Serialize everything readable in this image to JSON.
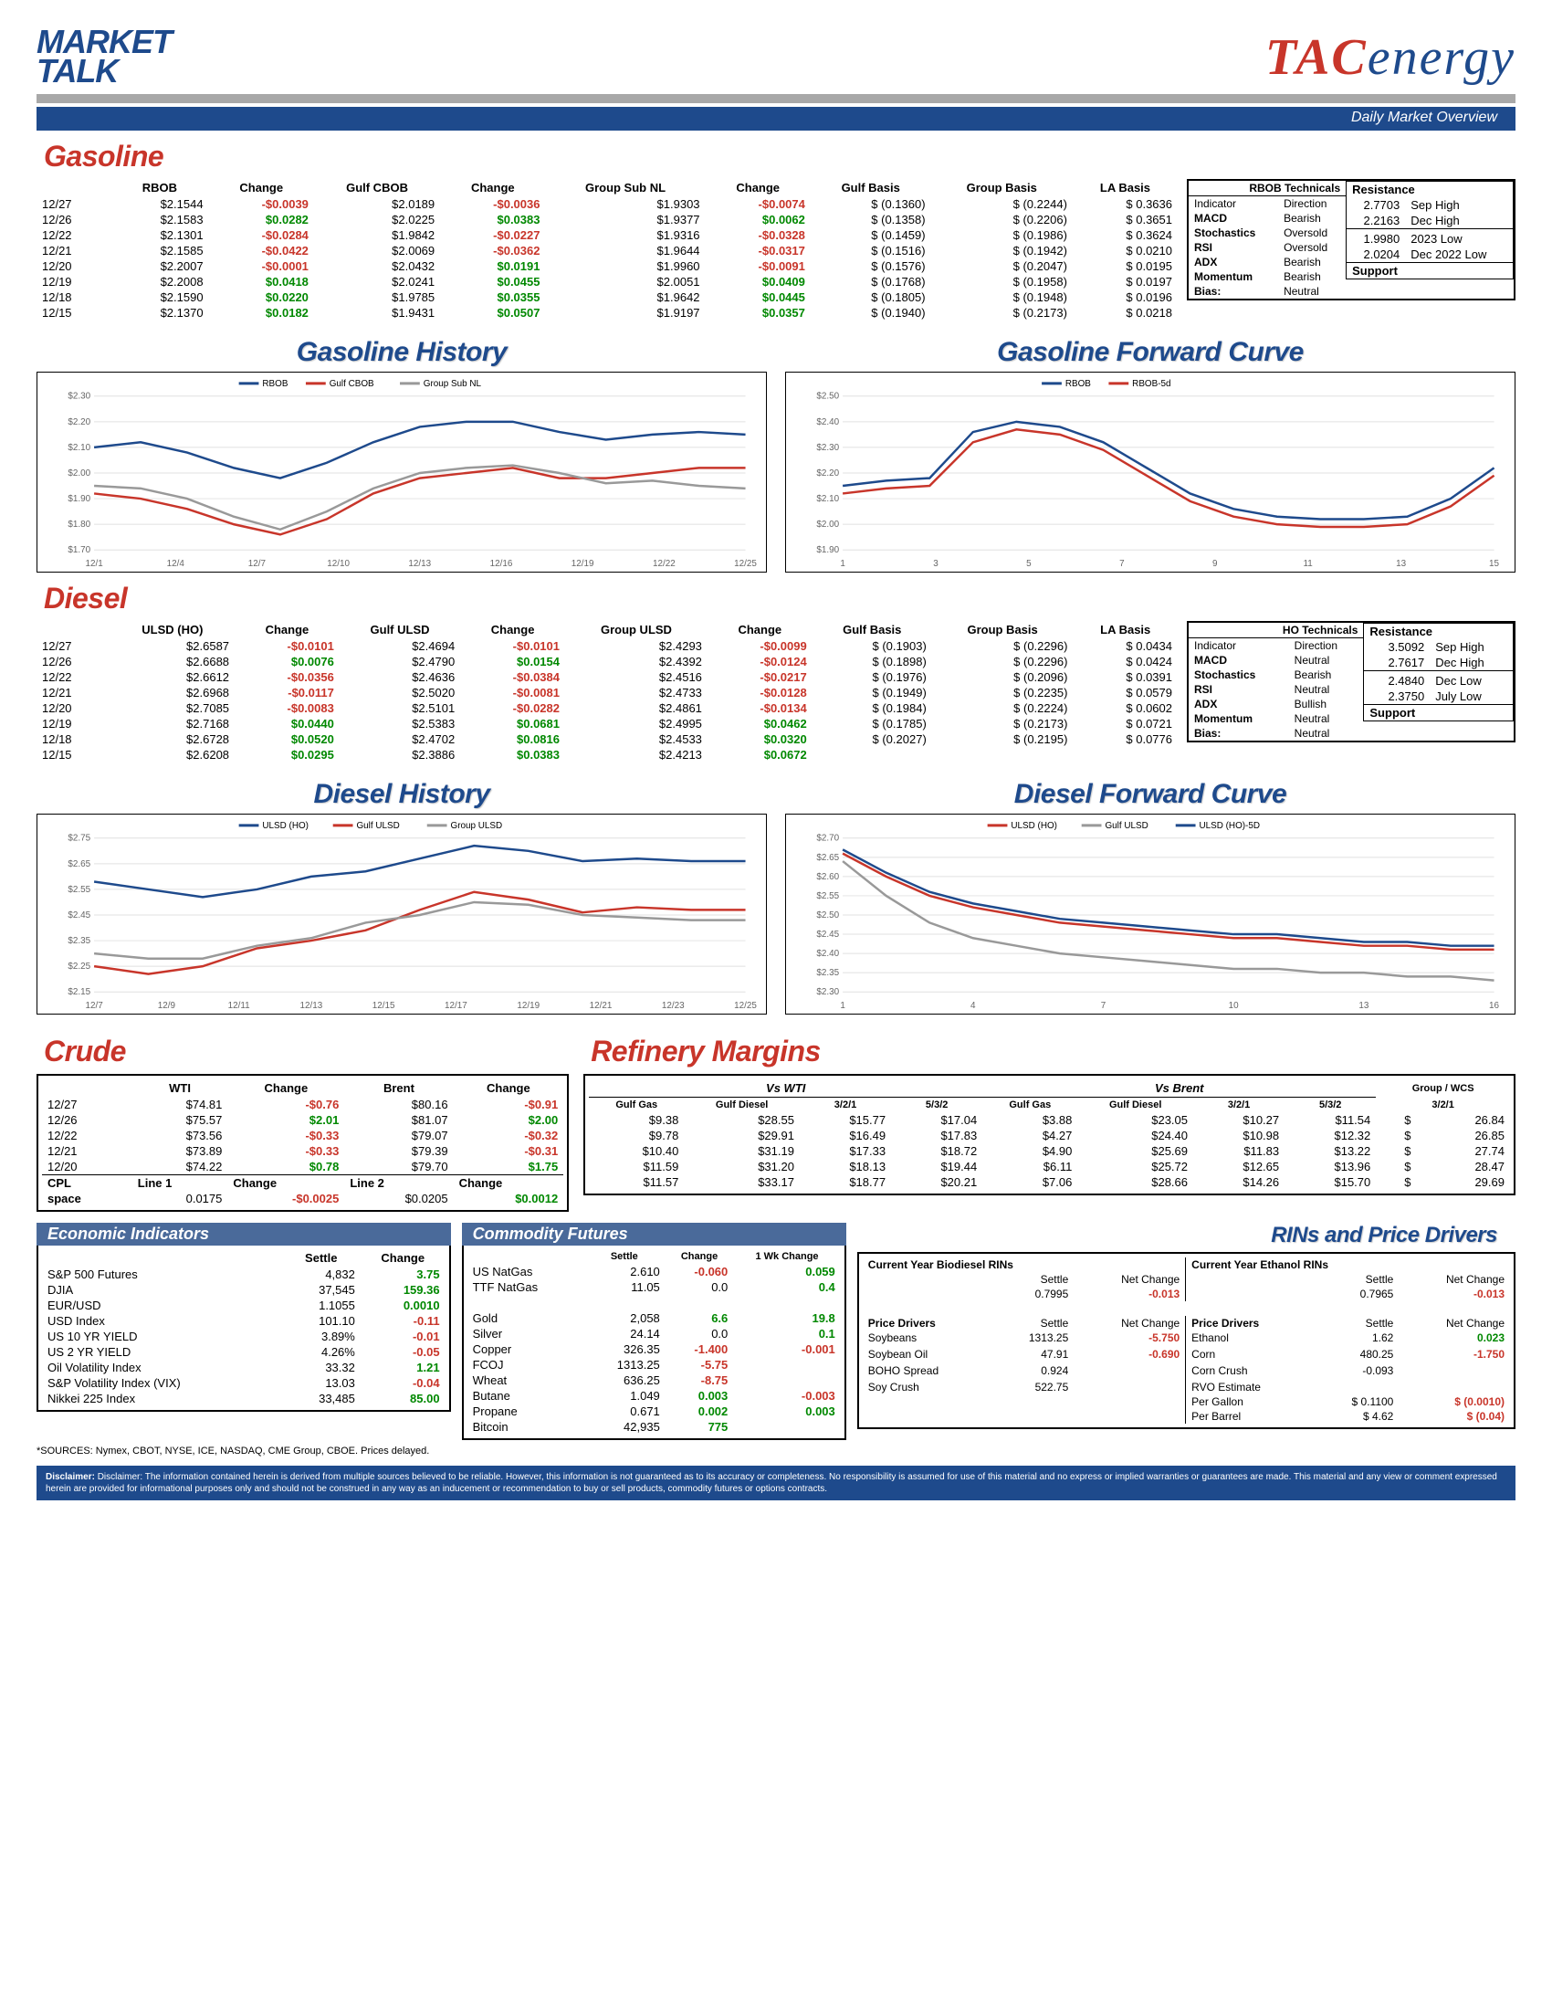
{
  "header": {
    "left1": "MARKET",
    "left2": "TALK",
    "right_tac": "TAC",
    "right_energy": "energy",
    "subbar": "Daily Market Overview"
  },
  "gasoline": {
    "title": "Gasoline",
    "headers": [
      "RBOB",
      "Change",
      "Gulf CBOB",
      "Change",
      "Group Sub NL",
      "Change",
      "Gulf Basis",
      "Group Basis",
      "LA Basis"
    ],
    "rows": [
      [
        "12/27",
        "$2.1544",
        "-$0.0039",
        "$2.0189",
        "-$0.0036",
        "$1.9303",
        "-$0.0074",
        "$ (0.1360)",
        "$ (0.2244)",
        "$ 0.3636"
      ],
      [
        "12/26",
        "$2.1583",
        "$0.0282",
        "$2.0225",
        "$0.0383",
        "$1.9377",
        "$0.0062",
        "$ (0.1358)",
        "$ (0.2206)",
        "$ 0.3651"
      ],
      [
        "12/22",
        "$2.1301",
        "-$0.0284",
        "$1.9842",
        "-$0.0227",
        "$1.9316",
        "-$0.0328",
        "$ (0.1459)",
        "$ (0.1986)",
        "$ 0.3624"
      ],
      [
        "12/21",
        "$2.1585",
        "-$0.0422",
        "$2.0069",
        "-$0.0362",
        "$1.9644",
        "-$0.0317",
        "$ (0.1516)",
        "$ (0.1942)",
        "$ 0.0210"
      ],
      [
        "12/20",
        "$2.2007",
        "-$0.0001",
        "$2.0432",
        "$0.0191",
        "$1.9960",
        "-$0.0091",
        "$ (0.1576)",
        "$ (0.2047)",
        "$ 0.0195"
      ],
      [
        "12/19",
        "$2.2008",
        "$0.0418",
        "$2.0241",
        "$0.0455",
        "$2.0051",
        "$0.0409",
        "$ (0.1768)",
        "$ (0.1958)",
        "$ 0.0197"
      ],
      [
        "12/18",
        "$2.1590",
        "$0.0220",
        "$1.9785",
        "$0.0355",
        "$1.9642",
        "$0.0445",
        "$ (0.1805)",
        "$ (0.1948)",
        "$ 0.0196"
      ],
      [
        "12/15",
        "$2.1370",
        "$0.0182",
        "$1.9431",
        "$0.0507",
        "$1.9197",
        "$0.0357",
        "$ (0.1940)",
        "$ (0.2173)",
        "$ 0.0218"
      ]
    ],
    "technicals": {
      "title": "RBOB Technicals",
      "headers": [
        "Indicator",
        "Direction"
      ],
      "rows": [
        [
          "MACD",
          "Bearish"
        ],
        [
          "Stochastics",
          "Oversold"
        ],
        [
          "RSI",
          "Oversold"
        ],
        [
          "ADX",
          "Bearish"
        ],
        [
          "Momentum",
          "Bearish"
        ],
        [
          "Bias:",
          "Neutral"
        ]
      ],
      "resistance_title": "Resistance",
      "support_title": "Support",
      "res": [
        [
          "2.7703",
          "Sep High"
        ],
        [
          "2.2163",
          "Dec High"
        ],
        [
          "1.9980",
          "2023 Low"
        ],
        [
          "2.0204",
          "Dec 2022 Low"
        ]
      ]
    }
  },
  "gasoline_history": {
    "title": "Gasoline History",
    "type": "line",
    "legend": [
      {
        "name": "RBOB",
        "color": "#1e4a8c"
      },
      {
        "name": "Gulf CBOB",
        "color": "#c8352a"
      },
      {
        "name": "Group Sub NL",
        "color": "#999"
      }
    ],
    "xlabels": [
      "12/1",
      "12/4",
      "12/7",
      "12/10",
      "12/13",
      "12/16",
      "12/19",
      "12/22",
      "12/25"
    ],
    "ylim": [
      1.7,
      2.3
    ],
    "yticks": [
      "$1.70",
      "$1.80",
      "$1.90",
      "$2.00",
      "$2.10",
      "$2.20",
      "$2.30"
    ],
    "series": {
      "rbob": [
        2.1,
        2.12,
        2.08,
        2.02,
        1.98,
        2.04,
        2.12,
        2.18,
        2.2,
        2.2,
        2.16,
        2.13,
        2.15,
        2.16,
        2.15
      ],
      "cbob": [
        1.92,
        1.9,
        1.86,
        1.8,
        1.76,
        1.82,
        1.92,
        1.98,
        2.0,
        2.02,
        1.98,
        1.98,
        2.0,
        2.02,
        2.02
      ],
      "group": [
        1.95,
        1.94,
        1.9,
        1.83,
        1.78,
        1.85,
        1.94,
        2.0,
        2.02,
        2.03,
        2.0,
        1.96,
        1.97,
        1.95,
        1.94
      ]
    }
  },
  "gasoline_forward": {
    "title": "Gasoline Forward Curve",
    "legend": [
      {
        "name": "RBOB",
        "color": "#1e4a8c"
      },
      {
        "name": "RBOB-5d",
        "color": "#c8352a"
      }
    ],
    "xlabels": [
      "1",
      "3",
      "5",
      "7",
      "9",
      "11",
      "13",
      "15"
    ],
    "ylim": [
      1.9,
      2.5
    ],
    "yticks": [
      "$1.90",
      "$2.00",
      "$2.10",
      "$2.20",
      "$2.30",
      "$2.40",
      "$2.50"
    ],
    "series": {
      "rbob": [
        2.15,
        2.17,
        2.18,
        2.36,
        2.4,
        2.38,
        2.32,
        2.22,
        2.12,
        2.06,
        2.03,
        2.02,
        2.02,
        2.03,
        2.1,
        2.22
      ],
      "rbob5d": [
        2.12,
        2.14,
        2.15,
        2.32,
        2.37,
        2.35,
        2.29,
        2.19,
        2.09,
        2.03,
        2.0,
        1.99,
        1.99,
        2.0,
        2.07,
        2.19
      ]
    }
  },
  "diesel": {
    "title": "Diesel",
    "headers": [
      "ULSD (HO)",
      "Change",
      "Gulf ULSD",
      "Change",
      "Group ULSD",
      "Change",
      "Gulf Basis",
      "Group Basis",
      "LA Basis"
    ],
    "rows": [
      [
        "12/27",
        "$2.6587",
        "-$0.0101",
        "$2.4694",
        "-$0.0101",
        "$2.4293",
        "-$0.0099",
        "$ (0.1903)",
        "$ (0.2296)",
        "$ 0.0434"
      ],
      [
        "12/26",
        "$2.6688",
        "$0.0076",
        "$2.4790",
        "$0.0154",
        "$2.4392",
        "-$0.0124",
        "$ (0.1898)",
        "$ (0.2296)",
        "$ 0.0424"
      ],
      [
        "12/22",
        "$2.6612",
        "-$0.0356",
        "$2.4636",
        "-$0.0384",
        "$2.4516",
        "-$0.0217",
        "$ (0.1976)",
        "$ (0.2096)",
        "$ 0.0391"
      ],
      [
        "12/21",
        "$2.6968",
        "-$0.0117",
        "$2.5020",
        "-$0.0081",
        "$2.4733",
        "-$0.0128",
        "$ (0.1949)",
        "$ (0.2235)",
        "$ 0.0579"
      ],
      [
        "12/20",
        "$2.7085",
        "-$0.0083",
        "$2.5101",
        "-$0.0282",
        "$2.4861",
        "-$0.0134",
        "$ (0.1984)",
        "$ (0.2224)",
        "$ 0.0602"
      ],
      [
        "12/19",
        "$2.7168",
        "$0.0440",
        "$2.5383",
        "$0.0681",
        "$2.4995",
        "$0.0462",
        "$ (0.1785)",
        "$ (0.2173)",
        "$ 0.0721"
      ],
      [
        "12/18",
        "$2.6728",
        "$0.0520",
        "$2.4702",
        "$0.0816",
        "$2.4533",
        "$0.0320",
        "$ (0.2027)",
        "$ (0.2195)",
        "$ 0.0776"
      ],
      [
        "12/15",
        "$2.6208",
        "$0.0295",
        "$2.3886",
        "$0.0383",
        "$2.4213",
        "$0.0672",
        "",
        "",
        ""
      ]
    ],
    "technicals": {
      "title": "HO Technicals",
      "headers": [
        "Indicator",
        "Direction"
      ],
      "rows": [
        [
          "MACD",
          "Neutral"
        ],
        [
          "Stochastics",
          "Bearish"
        ],
        [
          "RSI",
          "Neutral"
        ],
        [
          "ADX",
          "Bullish"
        ],
        [
          "Momentum",
          "Neutral"
        ],
        [
          "Bias:",
          "Neutral"
        ]
      ],
      "resistance_title": "Resistance",
      "support_title": "Support",
      "res": [
        [
          "3.5092",
          "Sep High"
        ],
        [
          "2.7617",
          "Dec High"
        ],
        [
          "2.4840",
          "Dec Low"
        ],
        [
          "2.3750",
          "July Low"
        ]
      ]
    }
  },
  "diesel_history": {
    "title": "Diesel History",
    "legend": [
      {
        "name": "ULSD (HO)",
        "color": "#1e4a8c"
      },
      {
        "name": "Gulf ULSD",
        "color": "#c8352a"
      },
      {
        "name": "Group ULSD",
        "color": "#999"
      }
    ],
    "xlabels": [
      "12/7",
      "12/9",
      "12/11",
      "12/13",
      "12/15",
      "12/17",
      "12/19",
      "12/21",
      "12/23",
      "12/25"
    ],
    "ylim": [
      2.15,
      2.75
    ],
    "yticks": [
      "$2.15",
      "$2.25",
      "$2.35",
      "$2.45",
      "$2.55",
      "$2.65",
      "$2.75"
    ],
    "series": {
      "ulsd": [
        2.58,
        2.55,
        2.52,
        2.55,
        2.6,
        2.62,
        2.67,
        2.72,
        2.7,
        2.66,
        2.67,
        2.66,
        2.66
      ],
      "gulf": [
        2.25,
        2.22,
        2.25,
        2.32,
        2.35,
        2.39,
        2.47,
        2.54,
        2.51,
        2.46,
        2.48,
        2.47,
        2.47
      ],
      "group": [
        2.3,
        2.28,
        2.28,
        2.33,
        2.36,
        2.42,
        2.45,
        2.5,
        2.49,
        2.45,
        2.44,
        2.43,
        2.43
      ]
    }
  },
  "diesel_forward": {
    "title": "Diesel Forward Curve",
    "legend": [
      {
        "name": "ULSD (HO)",
        "color": "#c8352a"
      },
      {
        "name": "Gulf ULSD",
        "color": "#999"
      },
      {
        "name": "ULSD (HO)-5D",
        "color": "#1e4a8c"
      }
    ],
    "xlabels": [
      "1",
      "4",
      "7",
      "10",
      "13",
      "16"
    ],
    "ylim": [
      2.3,
      2.7
    ],
    "yticks": [
      "$2.30",
      "$2.35",
      "$2.40",
      "$2.45",
      "$2.50",
      "$2.55",
      "$2.60",
      "$2.65",
      "$2.70"
    ],
    "series": {
      "ulsd": [
        2.66,
        2.6,
        2.55,
        2.52,
        2.5,
        2.48,
        2.47,
        2.46,
        2.45,
        2.44,
        2.44,
        2.43,
        2.42,
        2.42,
        2.41,
        2.41
      ],
      "gulf": [
        2.64,
        2.55,
        2.48,
        2.44,
        2.42,
        2.4,
        2.39,
        2.38,
        2.37,
        2.36,
        2.36,
        2.35,
        2.35,
        2.34,
        2.34,
        2.33
      ],
      "ulsd5d": [
        2.67,
        2.61,
        2.56,
        2.53,
        2.51,
        2.49,
        2.48,
        2.47,
        2.46,
        2.45,
        2.45,
        2.44,
        2.43,
        2.43,
        2.42,
        2.42
      ]
    }
  },
  "crude": {
    "title": "Crude",
    "headers": [
      "",
      "WTI",
      "Change",
      "Brent",
      "Change"
    ],
    "rows": [
      [
        "12/27",
        "$74.81",
        "-$0.76",
        "$80.16",
        "-$0.91"
      ],
      [
        "12/26",
        "$75.57",
        "$2.01",
        "$81.07",
        "$2.00"
      ],
      [
        "12/22",
        "$73.56",
        "-$0.33",
        "$79.07",
        "-$0.32"
      ],
      [
        "12/21",
        "$73.89",
        "-$0.33",
        "$79.39",
        "-$0.31"
      ],
      [
        "12/20",
        "$74.22",
        "$0.78",
        "$79.70",
        "$1.75"
      ]
    ],
    "cpl_row": [
      "CPL",
      "Line 1",
      "Change",
      "Line 2",
      "Change"
    ],
    "cpl_vals": [
      "space",
      "0.0175",
      "-$0.0025",
      "$0.0205",
      "$0.0012"
    ]
  },
  "refinery": {
    "title": "Refinery Margins",
    "headers_wti": [
      "Gulf Gas",
      "Gulf Diesel",
      "3/2/1",
      "5/3/2"
    ],
    "headers_brent": [
      "Gulf Gas",
      "Gulf Diesel",
      "3/2/1",
      "5/3/2"
    ],
    "group_wcs": "Group / WCS",
    "group_wcs_sub": "3/2/1",
    "vs_wti": "Vs WTI",
    "vs_brent": "Vs Brent",
    "rows": [
      [
        "$9.38",
        "$28.55",
        "$15.77",
        "$17.04",
        "$3.88",
        "$23.05",
        "$10.27",
        "$11.54",
        "$",
        "26.84"
      ],
      [
        "$9.78",
        "$29.91",
        "$16.49",
        "$17.83",
        "$4.27",
        "$24.40",
        "$10.98",
        "$12.32",
        "$",
        "26.85"
      ],
      [
        "$10.40",
        "$31.19",
        "$17.33",
        "$18.72",
        "$4.90",
        "$25.69",
        "$11.83",
        "$13.22",
        "$",
        "27.74"
      ],
      [
        "$11.59",
        "$31.20",
        "$18.13",
        "$19.44",
        "$6.11",
        "$25.72",
        "$12.65",
        "$13.96",
        "$",
        "28.47"
      ],
      [
        "$11.57",
        "$33.17",
        "$18.77",
        "$20.21",
        "$7.06",
        "$28.66",
        "$14.26",
        "$15.70",
        "$",
        "29.69"
      ]
    ]
  },
  "econ": {
    "title": "Economic Indicators",
    "headers": [
      "",
      "Settle",
      "Change"
    ],
    "rows": [
      [
        "S&P 500 Futures",
        "4,832",
        "3.75",
        "pos"
      ],
      [
        "DJIA",
        "37,545",
        "159.36",
        "pos"
      ],
      [
        "EUR/USD",
        "1.1055",
        "0.0010",
        "pos"
      ],
      [
        "USD Index",
        "101.10",
        "-0.11",
        "neg"
      ],
      [
        "US 10 YR YIELD",
        "3.89%",
        "-0.01",
        "neg"
      ],
      [
        "US 2 YR YIELD",
        "4.26%",
        "-0.05",
        "neg"
      ],
      [
        "Oil Volatility Index",
        "33.32",
        "1.21",
        "pos"
      ],
      [
        "S&P Volatility Index (VIX)",
        "13.03",
        "-0.04",
        "neg"
      ],
      [
        "Nikkei 225 Index",
        "33,485",
        "85.00",
        "pos"
      ]
    ]
  },
  "commod": {
    "title": "Commodity Futures",
    "headers": [
      "",
      "Settle",
      "Change",
      "1 Wk Change"
    ],
    "rows": [
      [
        "US NatGas",
        "2.610",
        "-0.060",
        "0.059",
        "neg",
        "pos"
      ],
      [
        "TTF NatGas",
        "11.05",
        "0.0",
        "0.4",
        "",
        "pos"
      ],
      [
        "",
        "",
        "",
        "",
        "",
        ""
      ],
      [
        "Gold",
        "2,058",
        "6.6",
        "19.8",
        "pos",
        "pos"
      ],
      [
        "Silver",
        "24.14",
        "0.0",
        "0.1",
        "",
        "pos"
      ],
      [
        "Copper",
        "326.35",
        "-1.400",
        "-0.001",
        "neg",
        "neg"
      ],
      [
        "FCOJ",
        "1313.25",
        "-5.75",
        "",
        "neg",
        ""
      ],
      [
        "Wheat",
        "636.25",
        "-8.75",
        "",
        "neg",
        ""
      ],
      [
        "Butane",
        "1.049",
        "0.003",
        "-0.003",
        "pos",
        "neg"
      ],
      [
        "Propane",
        "0.671",
        "0.002",
        "0.003",
        "pos",
        "pos"
      ],
      [
        "Bitcoin",
        "42,935",
        "775",
        "",
        "pos",
        ""
      ]
    ]
  },
  "rins": {
    "title": "RINs and Price Drivers",
    "biodiesel_title": "Current Year Biodiesel RINs",
    "ethanol_title": "Current Year Ethanol RINs",
    "bd": {
      "settle": "0.7995",
      "chg": "-0.013"
    },
    "eth": {
      "settle": "0.7965",
      "chg": "-0.013"
    },
    "pd_left_title": "Price Drivers",
    "pd_right_title": "Price Drivers",
    "pd_left": [
      [
        "Soybeans",
        "1313.25",
        "-5.750",
        "neg"
      ],
      [
        "",
        "",
        "",
        ""
      ],
      [
        "Soybean Oil",
        "47.91",
        "-0.690",
        "neg"
      ],
      [
        "",
        "",
        "",
        ""
      ],
      [
        "BOHO Spread",
        "0.924",
        "",
        ""
      ],
      [
        "",
        "",
        "",
        ""
      ],
      [
        "Soy Crush",
        "522.75",
        "",
        ""
      ]
    ],
    "pd_right": [
      [
        "Ethanol",
        "1.62",
        "0.023",
        "pos"
      ],
      [
        "",
        "",
        "",
        ""
      ],
      [
        "Corn",
        "480.25",
        "-1.750",
        "neg"
      ],
      [
        "",
        "",
        "",
        ""
      ],
      [
        "Corn Crush",
        "-0.093",
        "",
        ""
      ],
      [
        "",
        "",
        "",
        ""
      ],
      [
        "RVO Estimate",
        "",
        "",
        ""
      ],
      [
        "Per Gallon",
        "$ 0.1100",
        "$ (0.0010)",
        "neg"
      ],
      [
        "Per Barrel",
        "$ 4.62",
        "$ (0.04)",
        "neg"
      ]
    ]
  },
  "sources": "*SOURCES: Nymex, CBOT, NYSE, ICE, NASDAQ, CME Group, CBOE.   Prices delayed.",
  "disclaimer": "Disclaimer: The information contained herein is derived from multiple sources believed to be reliable. However, this information is not guaranteed as to its accuracy or completeness. No responsibility is assumed for use of this material and no express or implied warranties or guarantees are made. This material and any view or comment expressed herein are provided for informational purposes only and should not be construed in any way as an inducement or recommendation to buy or sell products, commodity futures or options contracts."
}
